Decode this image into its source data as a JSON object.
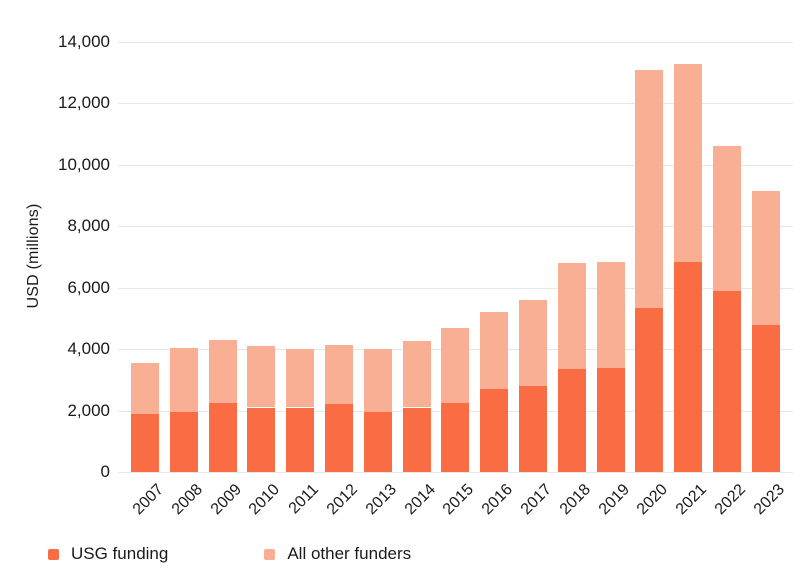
{
  "chart_data": {
    "type": "bar",
    "stacked": true,
    "title": "",
    "ylabel": "USD (millions)",
    "xlabel": "",
    "categories": [
      "2007",
      "2008",
      "2009",
      "2010",
      "2011",
      "2012",
      "2013",
      "2014",
      "2015",
      "2016",
      "2017",
      "2018",
      "2019",
      "2020",
      "2021",
      "2022",
      "2023"
    ],
    "series": [
      {
        "name": "USG funding",
        "color": "#F96C44",
        "values": [
          1900,
          1950,
          2250,
          2100,
          2100,
          2200,
          1950,
          2100,
          2250,
          2700,
          2800,
          3350,
          3400,
          5350,
          6850,
          5900,
          4800
        ]
      },
      {
        "name": "All other funders",
        "color": "#F9AF93",
        "values": [
          1650,
          2100,
          2050,
          2000,
          1900,
          1950,
          2050,
          2150,
          2450,
          2500,
          2800,
          3450,
          3450,
          7750,
          6450,
          4700,
          4350
        ]
      }
    ],
    "y_axis": {
      "min": 0,
      "max": 14000,
      "tick_step": 2000,
      "tick_labels": [
        "0",
        "2,000",
        "4,000",
        "6,000",
        "8,000",
        "10,000",
        "12,000",
        "14,000"
      ]
    },
    "grid": "horizontal",
    "grid_color": "#E7E7E7",
    "text_color": "#1A1A1A",
    "background_color": "#FFFFFF",
    "legend_position": "bottom-left",
    "x_tick_rotation": -45
  }
}
